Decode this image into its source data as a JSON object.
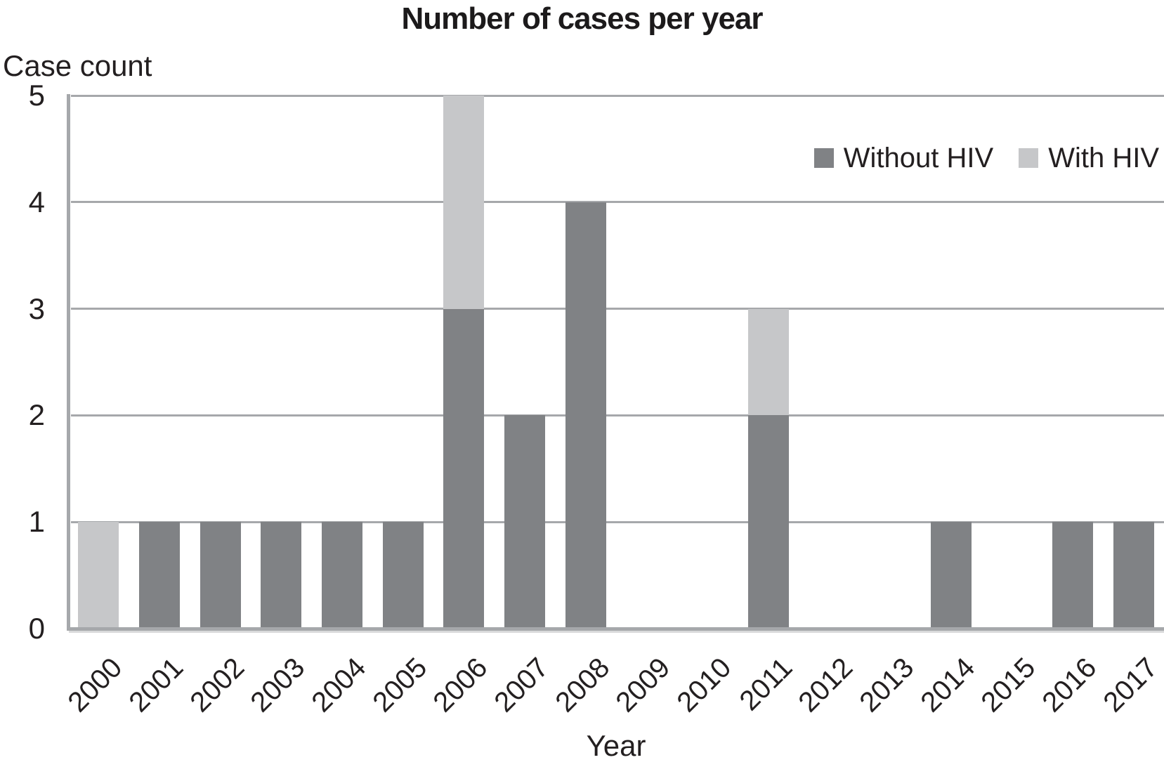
{
  "title": "Number of cases per year",
  "y_axis_caption": "Case count",
  "x_axis_caption": "Year",
  "legend": [
    {
      "label": "Without HIV",
      "color": "#808285"
    },
    {
      "label": "With HIV",
      "color": "#c6c7c9"
    }
  ],
  "colors": {
    "gridline": "#a6a8ab",
    "axis": "#a6a8ab",
    "text": "#231f20",
    "background": "#ffffff",
    "without_hiv": "#808285",
    "with_hiv": "#c6c7c9"
  },
  "chart_data": {
    "type": "bar",
    "stacked": true,
    "title": "Number of cases per year",
    "xlabel": "Year",
    "ylabel": "Case count",
    "categories": [
      "2000",
      "2001",
      "2002",
      "2003",
      "2004",
      "2005",
      "2006",
      "2007",
      "2008",
      "2009",
      "2010",
      "2011",
      "2012",
      "2013",
      "2014",
      "2015",
      "2016",
      "2017"
    ],
    "series": [
      {
        "name": "Without HIV",
        "color": "#808285",
        "values": [
          0,
          1,
          1,
          1,
          1,
          1,
          3,
          2,
          4,
          0,
          0,
          2,
          0,
          0,
          1,
          0,
          1,
          1
        ]
      },
      {
        "name": "With HIV",
        "color": "#c6c7c9",
        "values": [
          1,
          0,
          0,
          0,
          0,
          0,
          2,
          0,
          0,
          0,
          0,
          1,
          0,
          0,
          0,
          0,
          0,
          0
        ]
      }
    ],
    "totals": [
      1,
      1,
      1,
      1,
      1,
      1,
      5,
      2,
      4,
      0,
      0,
      3,
      0,
      0,
      1,
      0,
      1,
      1
    ],
    "ylim": [
      0,
      5
    ],
    "yticks": [
      0,
      1,
      2,
      3,
      4,
      5
    ],
    "grid": true,
    "legend_position": "top-right",
    "x_tick_rotation_deg": -45
  }
}
